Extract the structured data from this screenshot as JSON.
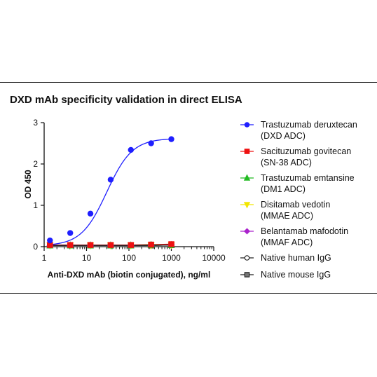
{
  "chart_data": {
    "type": "scatter",
    "title": "DXD mAb specificity validation in direct ELISA",
    "xlabel": "Anti-DXD mAb (biotin conjugated), ng/ml",
    "ylabel": "OD 450",
    "x_scale": "log",
    "xlim": [
      1,
      10000
    ],
    "ylim": [
      0,
      3
    ],
    "x_ticks": [
      "1",
      "10",
      "100",
      "1000",
      "10000"
    ],
    "y_ticks": [
      "0",
      "1",
      "2",
      "3"
    ],
    "grid": false,
    "legend_position": "right",
    "x": [
      1.37,
      4.12,
      12.35,
      37.04,
      111.1,
      333.3,
      1000
    ],
    "series": [
      {
        "name": "Trastuzumab deruxtecan (DXD ADC)",
        "legend_lines": [
          "Trastuzumab deruxtecan",
          "(DXD ADC)"
        ],
        "color": "#1f1fff",
        "marker": "circle",
        "filled": true,
        "fit_curve": true,
        "values": [
          0.15,
          0.33,
          0.8,
          1.62,
          2.34,
          2.5,
          2.6
        ]
      },
      {
        "name": "Sacituzumab govitecan (SN-38 ADC)",
        "legend_lines": [
          "Sacituzumab govitecan",
          "(SN-38 ADC)"
        ],
        "color": "#ee1111",
        "marker": "square",
        "filled": true,
        "fit_curve": false,
        "values": [
          0.04,
          0.04,
          0.04,
          0.04,
          0.04,
          0.05,
          0.06
        ]
      },
      {
        "name": "Trastuzumab emtansine (DM1 ADC)",
        "legend_lines": [
          "Trastuzumab emtansine",
          "(DM1 ADC)"
        ],
        "color": "#22bb22",
        "marker": "triangle",
        "filled": true,
        "fit_curve": false,
        "values": [
          0.03,
          0.03,
          0.03,
          0.03,
          0.03,
          0.04,
          0.04
        ]
      },
      {
        "name": "Disitamab vedotin (MMAE ADC)",
        "legend_lines": [
          "Disitamab vedotin",
          "(MMAE ADC)"
        ],
        "color": "#f2e600",
        "marker": "triangle-down",
        "filled": true,
        "fit_curve": false,
        "values": [
          0.03,
          0.03,
          0.03,
          0.03,
          0.03,
          0.03,
          0.04
        ]
      },
      {
        "name": "Belantamab mafodotin (MMAF ADC)",
        "legend_lines": [
          "Belantamab mafodotin",
          "(MMAF ADC)"
        ],
        "color": "#aa22cc",
        "marker": "diamond",
        "filled": true,
        "fit_curve": false,
        "values": [
          0.03,
          0.03,
          0.03,
          0.03,
          0.03,
          0.03,
          0.04
        ]
      },
      {
        "name": "Native human IgG",
        "legend_lines": [
          "Native human IgG"
        ],
        "color": "#222222",
        "marker": "circle",
        "filled": false,
        "fit_curve": false,
        "values": [
          0.03,
          0.03,
          0.03,
          0.03,
          0.03,
          0.03,
          0.04
        ]
      },
      {
        "name": "Native mouse IgG",
        "legend_lines": [
          "Native mouse IgG"
        ],
        "color": "#222222",
        "marker": "square",
        "filled": true,
        "fill": "#777777",
        "fit_curve": false,
        "values": [
          0.03,
          0.03,
          0.03,
          0.03,
          0.03,
          0.03,
          0.04
        ]
      }
    ]
  }
}
